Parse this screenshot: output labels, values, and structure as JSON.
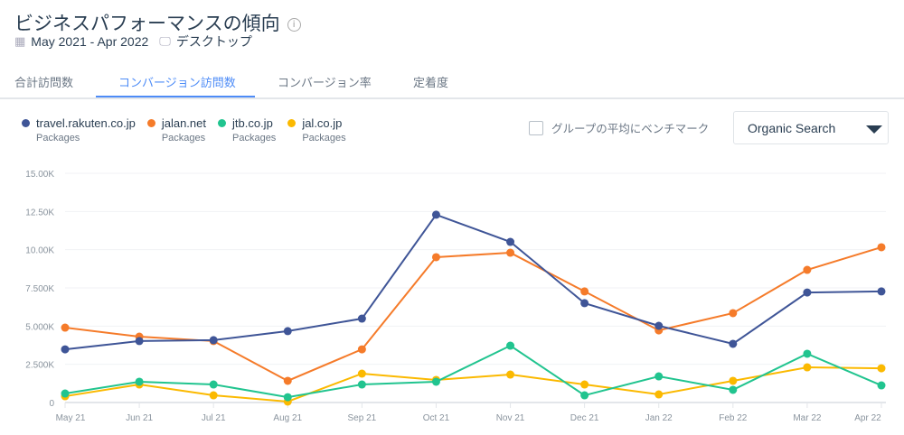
{
  "header": {
    "title": "ビジネスパフォーマンスの傾向",
    "date_range": "May 2021 - Apr 2022",
    "device": "デスクトップ",
    "icons": [
      "calendar-icon",
      "desktop-icon",
      "info-icon"
    ]
  },
  "tabs": [
    {
      "label": "合計訪問数"
    },
    {
      "label": "コンバージョン訪問数",
      "active": true
    },
    {
      "label": "コンバージョン率"
    },
    {
      "label": "定着度"
    }
  ],
  "controls": {
    "benchmark_label": "グループの平均にベンチマーク",
    "benchmark_checked": false,
    "channel": "Organic Search"
  },
  "chart_data": {
    "type": "line",
    "x": [
      "May 21",
      "Jun 21",
      "Jul 21",
      "Aug 21",
      "Sep 21",
      "Oct 21",
      "Nov 21",
      "Dec 21",
      "Jan 22",
      "Feb 22",
      "Mar 22",
      "Apr 22"
    ],
    "yticks": [
      "0",
      "2.500K",
      "5.000K",
      "7.500K",
      "10.00K",
      "12.50K",
      "15.00K"
    ],
    "ylim": [
      0,
      15000
    ],
    "grid": true,
    "legend_placement": "top-left",
    "series": [
      {
        "name": "travel.rakuten.co.jp",
        "sub": "Packages",
        "color": "#3f5597",
        "values": [
          3480,
          4020,
          4080,
          4670,
          5490,
          12290,
          10510,
          6500,
          5020,
          3840,
          7200,
          7270
        ]
      },
      {
        "name": "jalan.net",
        "sub": "Packages",
        "color": "#f57b2a",
        "values": [
          4900,
          4310,
          4020,
          1420,
          3480,
          9510,
          9800,
          7270,
          4720,
          5850,
          8680,
          10160
        ]
      },
      {
        "name": "jtb.co.jp",
        "sub": "Packages",
        "color": "#21c48f",
        "values": [
          590,
          1360,
          1180,
          350,
          1180,
          1360,
          3720,
          470,
          1710,
          830,
          3190,
          1120
        ]
      },
      {
        "name": "jal.co.jp",
        "sub": "Packages",
        "color": "#fbb900",
        "values": [
          410,
          1180,
          470,
          60,
          1890,
          1480,
          1830,
          1180,
          530,
          1420,
          2300,
          2240
        ]
      }
    ]
  }
}
